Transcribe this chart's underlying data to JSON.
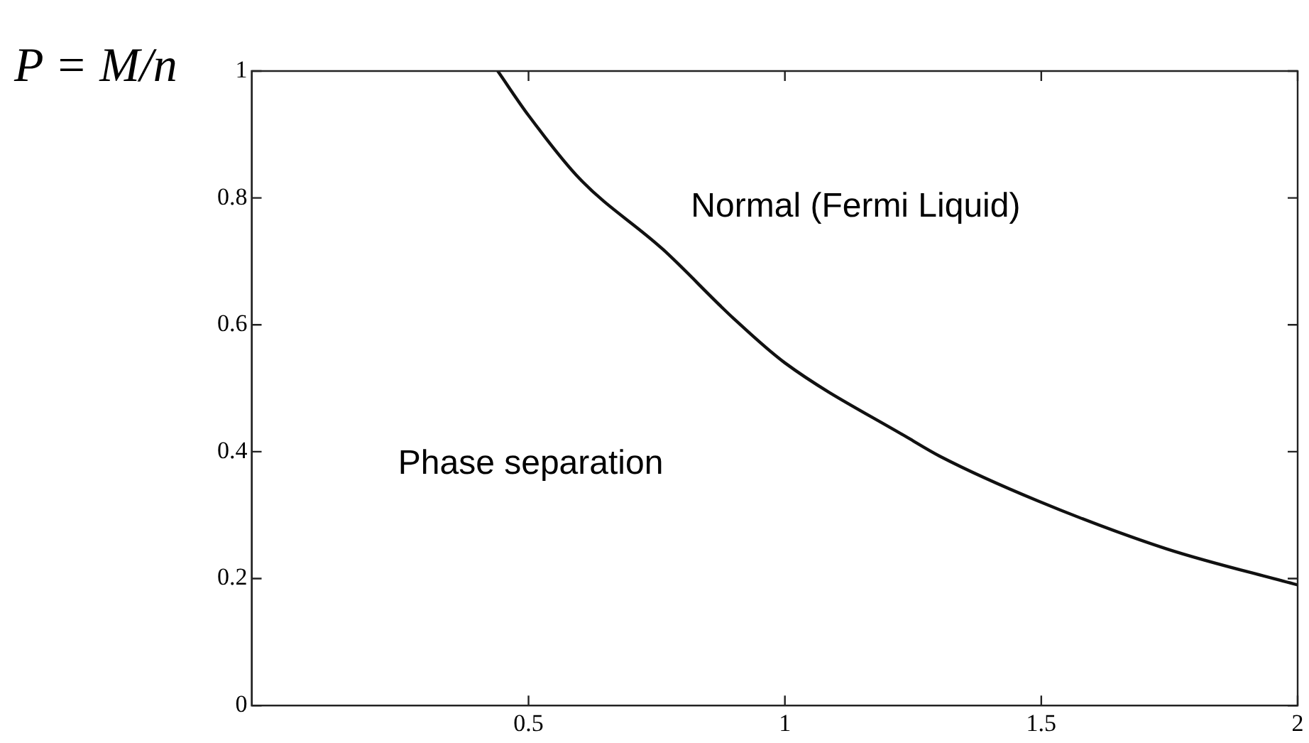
{
  "chart_data": {
    "type": "line",
    "ylabel": "P = M/n",
    "annotations": [
      "Normal (Fermi Liquid)",
      "Phase separation"
    ],
    "series": [
      {
        "color": "#111111",
        "x": [
          0.44,
          0.5,
          0.6,
          0.762,
          0.9,
          1.0,
          1.242,
          1.302,
          1.492,
          1.744,
          2.0
        ],
        "values": [
          1,
          0.93,
          0.83,
          0.719,
          0.61,
          0.54,
          0.421,
          0.393,
          0.323,
          0.247,
          0.19
        ]
      }
    ],
    "xlim": [
      -0.04,
      2
    ],
    "xticks": [
      0.5,
      1,
      1.5,
      2
    ],
    "ylim": [
      0,
      1
    ],
    "yticks": [
      0,
      0.2,
      0.4,
      0.6,
      0.8,
      1
    ],
    "grid": false,
    "legend": false,
    "marker": "none",
    "line_style": "solid"
  }
}
